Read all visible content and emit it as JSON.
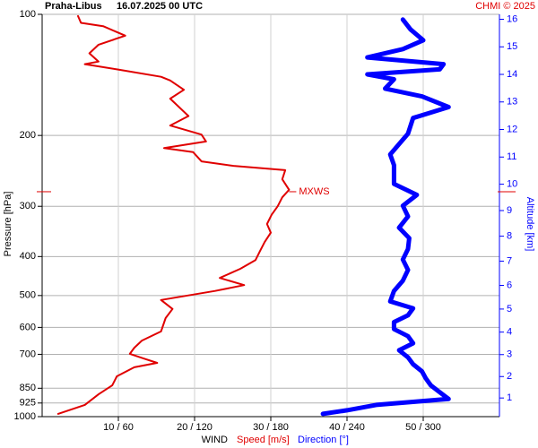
{
  "chart_data": {
    "type": "line",
    "title": "Praha-Libus",
    "subtitle": "16.07.2025 00 UTC",
    "credit": "CHMI © 2025",
    "ylabel": "Pressure [hPa]",
    "y2label": "Altitude [km]",
    "xlabel": "WIND",
    "ylog": true,
    "grid": true,
    "ylim": [
      100,
      1000
    ],
    "yticks": [
      100,
      200,
      300,
      400,
      500,
      600,
      700,
      850,
      925,
      1000
    ],
    "y2ticks": [
      1,
      2,
      3,
      4,
      5,
      6,
      7,
      8,
      9,
      10,
      11,
      12,
      13,
      14,
      15,
      16
    ],
    "xlim": [
      0,
      60
    ],
    "x2lim": [
      0,
      360
    ],
    "xticks": [
      {
        "value": 10,
        "label": "10 / 60"
      },
      {
        "value": 20,
        "label": "20 / 120"
      },
      {
        "value": 30,
        "label": "30 / 180"
      },
      {
        "value": 40,
        "label": "40 / 240"
      },
      {
        "value": 50,
        "label": "50 / 300"
      }
    ],
    "annotation": {
      "text": "MXWS",
      "pressure": 276
    },
    "series": [
      {
        "name": "Speed [m/s]",
        "color": "#e00000",
        "pressure": [
          984,
          935,
          880,
          836,
          794,
          754,
          735,
          717,
          698,
          674,
          647,
          614,
          569,
          540,
          513,
          487,
          471,
          452,
          429,
          408,
          387,
          368,
          349,
          332,
          315,
          300,
          285,
          273,
          257,
          244,
          238,
          232,
          220,
          215,
          207,
          199,
          189,
          179,
          162,
          154,
          146,
          143,
          137,
          133,
          131,
          125,
          119,
          113,
          107,
          105,
          101
        ],
        "values": [
          2.1,
          5.6,
          7.4,
          9.2,
          9.8,
          12.1,
          15.1,
          13.3,
          11.5,
          12.1,
          13.1,
          15.6,
          16.2,
          17.1,
          15.6,
          22.7,
          26.5,
          23.3,
          26,
          28,
          28.6,
          29.2,
          30,
          29.5,
          30.1,
          30.9,
          31.5,
          32.4,
          31.5,
          31.9,
          25.1,
          20.9,
          19.8,
          16,
          21.5,
          20.9,
          16.8,
          19.2,
          16.8,
          18.6,
          16.8,
          15.6,
          9.8,
          5.6,
          7.4,
          6.2,
          7.4,
          10.9,
          8,
          5.1,
          4.7
        ]
      },
      {
        "name": "Direction [°]",
        "color": "#0000ff",
        "axis": "x2",
        "pressure": [
          984,
          964,
          935,
          904,
          870,
          836,
          803,
          772,
          741,
          712,
          684,
          657,
          631,
          606,
          582,
          560,
          538,
          517,
          487,
          459,
          432,
          407,
          383,
          360,
          339,
          318,
          299,
          281,
          264,
          252,
          237,
          223,
          210,
          198,
          181,
          170,
          160,
          153,
          145,
          141,
          137,
          133,
          128,
          122,
          116,
          109,
          103
        ],
        "values": [
          221,
          240,
          263,
          320,
          313,
          306,
          302,
          299,
          292,
          288,
          281,
          292,
          288,
          277,
          277,
          288,
          292,
          274,
          277,
          284,
          288,
          284,
          288,
          289,
          281,
          288,
          284,
          295,
          277,
          277,
          277,
          274,
          281,
          288,
          292,
          320,
          299,
          270,
          277,
          256,
          313,
          316,
          256,
          284,
          300,
          290,
          284
        ]
      }
    ]
  }
}
